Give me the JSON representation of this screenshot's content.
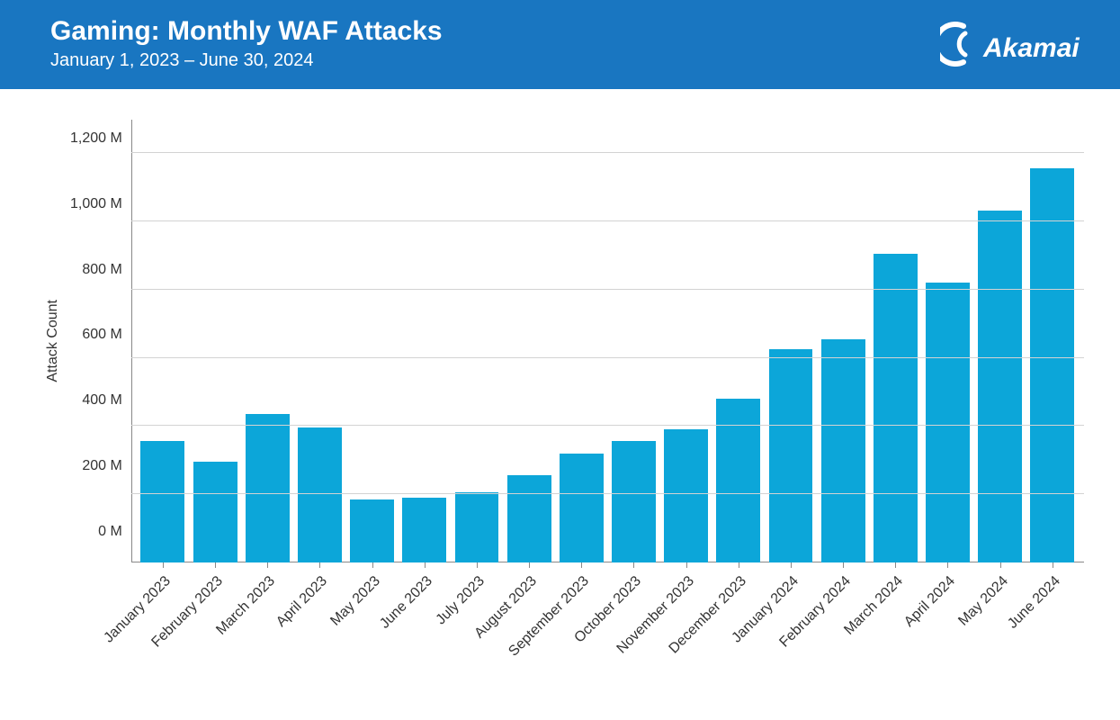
{
  "header": {
    "title": "Gaming: Monthly WAF Attacks",
    "subtitle": "January 1, 2023 – June 30, 2024",
    "logo_text": "Akamai",
    "bg_color": "#1976c1",
    "text_color": "#ffffff"
  },
  "chart": {
    "type": "bar",
    "y_axis_label": "Attack Count",
    "bar_color": "#0ca6d9",
    "grid_color": "#d3d3d3",
    "axis_color": "#888888",
    "background_color": "#ffffff",
    "label_fontsize": 16,
    "ylim": [
      0,
      1200
    ],
    "ytick_step": 200,
    "y_ticks": [
      "1,200 M",
      "1,000 M",
      "800 M",
      "600 M",
      "400 M",
      "200 M",
      "0 M"
    ],
    "y_tick_values": [
      1200,
      1000,
      800,
      600,
      400,
      200,
      0
    ],
    "categories": [
      "January 2023",
      "February 2023",
      "March 2023",
      "April 2023",
      "May 2023",
      "June 2023",
      "July 2023",
      "August 2023",
      "September 2023",
      "October 2023",
      "November 2023",
      "December 2023",
      "January 2024",
      "February 2024",
      "March 2024",
      "April 2024",
      "May 2024",
      "June 2024"
    ],
    "values": [
      355,
      295,
      435,
      395,
      185,
      190,
      205,
      255,
      320,
      355,
      390,
      480,
      625,
      655,
      905,
      820,
      1030,
      1155
    ],
    "bar_width": 0.84,
    "x_label_rotation": -45
  }
}
